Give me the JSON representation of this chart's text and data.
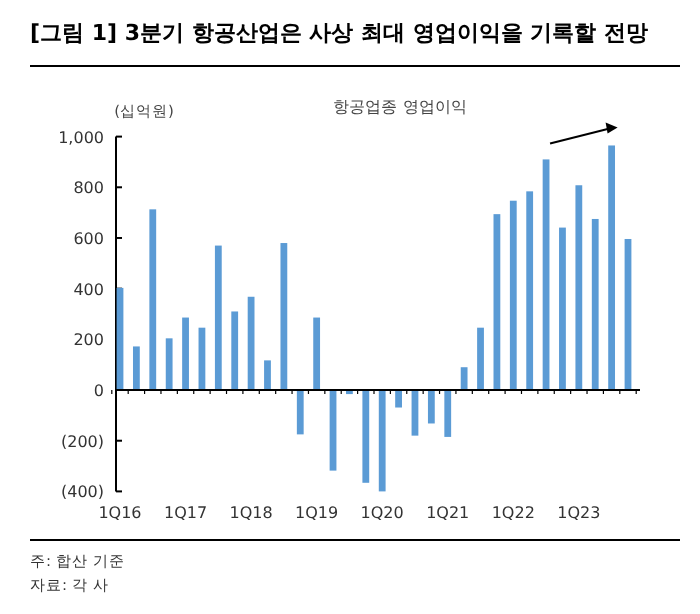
{
  "chart_data": {
    "type": "bar",
    "title": "[그림 1] 3분기 항공산업은 사상 최대 영업이익을 기록할 전망",
    "subtitle": "항공업종 영업이익",
    "ylabel": "(십억원)",
    "categories": [
      "1Q16",
      null,
      null,
      null,
      "1Q17",
      null,
      null,
      null,
      "1Q18",
      null,
      null,
      null,
      "1Q19",
      null,
      null,
      null,
      "1Q20",
      null,
      null,
      null,
      "1Q21",
      null,
      null,
      null,
      "1Q22",
      null,
      null,
      null,
      "1Q23",
      null,
      null,
      null
    ],
    "values": [
      403,
      172,
      713,
      204,
      286,
      246,
      570,
      310,
      368,
      117,
      580,
      -175,
      286,
      -318,
      -16,
      -366,
      -400,
      -69,
      -180,
      -132,
      -185,
      90,
      246,
      694,
      747,
      784,
      910,
      641,
      808,
      675,
      965,
      596
    ],
    "color": "#5b9bd5",
    "ylim": [
      -400,
      1000
    ],
    "yticks": [
      {
        "value": -400,
        "label": "(400)"
      },
      {
        "value": -200,
        "label": "(200)"
      },
      0,
      200,
      400,
      600,
      800,
      {
        "value": 1000,
        "label": "1,000"
      }
    ],
    "annotations": [
      "주: 합산 기준",
      "자료: 각 사"
    ]
  }
}
